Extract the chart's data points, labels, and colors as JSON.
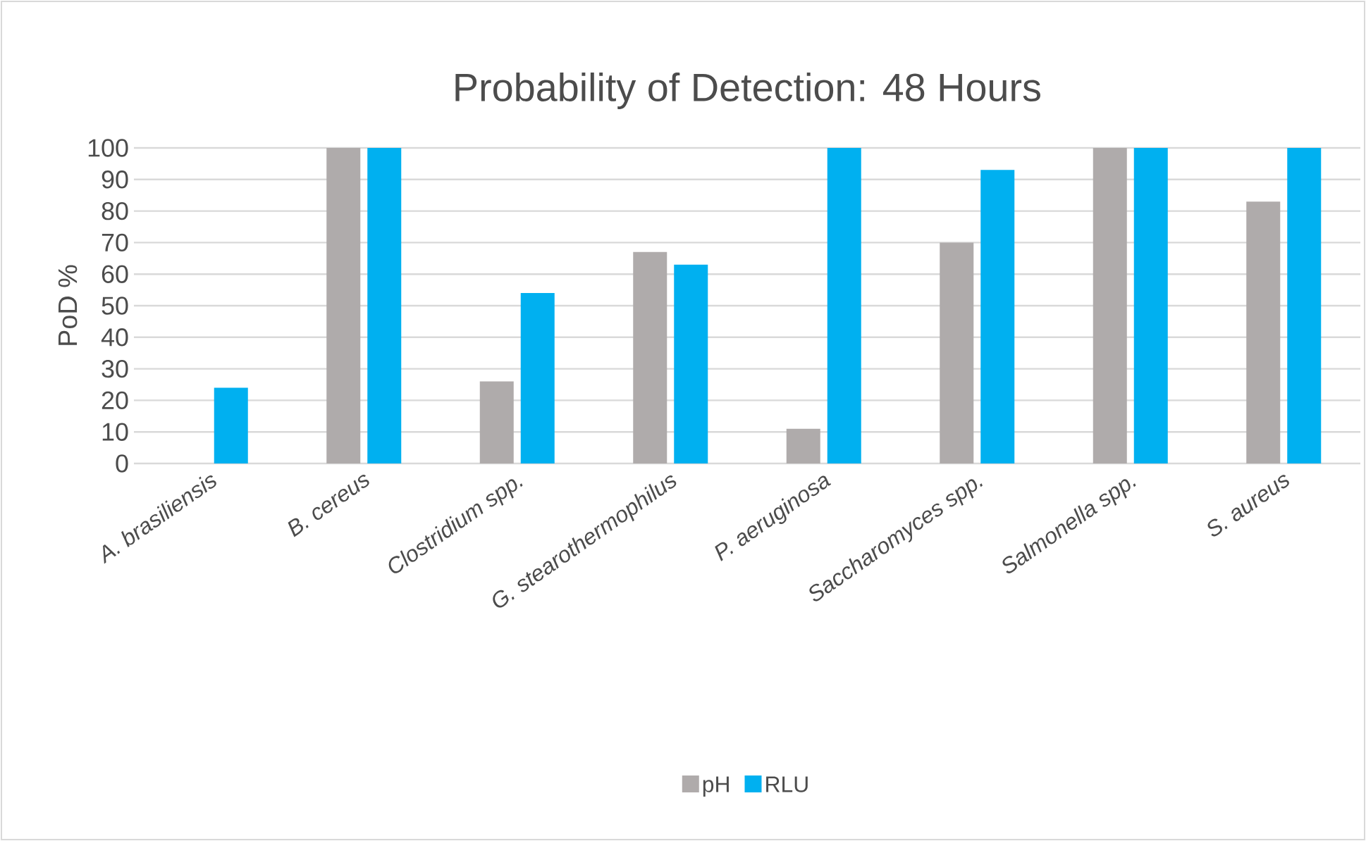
{
  "chart_data": {
    "type": "bar",
    "title": "Probability of Detection: 48 Hours",
    "ylabel": "PoD %",
    "categories": [
      "A. brasiliensis",
      "B. cereus",
      "Clostridium spp.",
      "G. stearothermophilus",
      "P. aeruginosa",
      "Saccharomyces spp.",
      "Salmonella spp.",
      "S. aureus"
    ],
    "series": [
      {
        "name": "pH",
        "color": "#afabab",
        "values": [
          0,
          100,
          26,
          67,
          11,
          70,
          100,
          83
        ]
      },
      {
        "name": "RLU",
        "color": "#00b0f0",
        "values": [
          24,
          100,
          54,
          63,
          100,
          93,
          100,
          100
        ]
      }
    ],
    "ylim": [
      0,
      100
    ],
    "yticks": [
      0,
      10,
      20,
      30,
      40,
      50,
      60,
      70,
      80,
      90,
      100
    ],
    "grid": "y",
    "legend": "bottom"
  }
}
